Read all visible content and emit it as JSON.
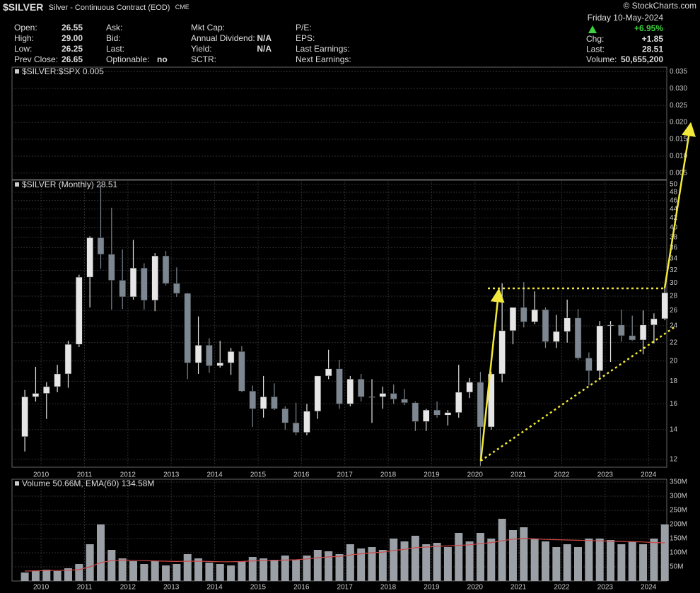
{
  "header": {
    "title": "$SILVER",
    "subtitle": "Silver - Continuous Contract (EOD)",
    "exchange": "CME",
    "watermark": "© StockCharts.com",
    "date": "Friday  10-May-2024",
    "change_pct": "+6.95%",
    "columns": [
      [
        {
          "label": "Open:",
          "value": "26.55"
        },
        {
          "label": "High:",
          "value": "29.00"
        },
        {
          "label": "Low:",
          "value": "26.25"
        },
        {
          "label": "Prev Close:",
          "value": "26.65"
        }
      ],
      [
        {
          "label": "Ask:"
        },
        {
          "label": "Bid:"
        },
        {
          "label": "Last:"
        },
        {
          "label": "Optionable:",
          "value": "no"
        }
      ],
      [
        {
          "label": "Mkt Cap:"
        },
        {
          "label": "Annual Dividend:",
          "value": "N/A"
        },
        {
          "label": "Yield:",
          "value": "N/A"
        },
        {
          "label": "SCTR:"
        }
      ],
      [
        {
          "label": "P/E:"
        },
        {
          "label": "EPS:"
        },
        {
          "label": "Last Earnings:"
        },
        {
          "label": "Next Earnings:"
        }
      ]
    ],
    "quote": [
      {
        "label": "Chg:",
        "value": "+1.85"
      },
      {
        "label": "Last:",
        "value": "28.51"
      },
      {
        "label": "Volume:",
        "value": "50,655,200"
      }
    ]
  },
  "chart_data": [
    {
      "type": "line",
      "title": "$SILVER:$SPX 0.005",
      "ylim": [
        0.0031,
        0.0363
      ],
      "yticks": [
        0.005,
        {
          "value": 0.01,
          "label": "0.010"
        },
        0.015,
        {
          "value": 0.02,
          "label": "0.020"
        },
        0.025,
        {
          "value": 0.03,
          "label": "0.030"
        },
        0.035
      ],
      "grid": true
    },
    {
      "type": "candlestick",
      "title": "$SILVER (Monthly) 28.51",
      "log_scale": true,
      "grid": true,
      "up_color": "#e6e6e6",
      "down_color": "#7d8791",
      "xlim": [
        2009.33,
        2024.42
      ],
      "xticks": [
        2010,
        2011,
        2012,
        2013,
        2014,
        2015,
        2016,
        2017,
        2018,
        2019,
        2020,
        2021,
        2022,
        2023,
        2024
      ],
      "ylim": [
        11.52,
        51.1
      ],
      "yticks": [
        12,
        14,
        16,
        18,
        20,
        22,
        24,
        26,
        28,
        30,
        32,
        34,
        36,
        38,
        40,
        42,
        44,
        46,
        48,
        50
      ],
      "x": [
        2009.625,
        2009.875,
        2010.125,
        2010.375,
        2010.625,
        2010.875,
        2011.125,
        2011.375,
        2011.625,
        2011.875,
        2012.125,
        2012.375,
        2012.625,
        2012.875,
        2013.125,
        2013.375,
        2013.625,
        2013.875,
        2014.125,
        2014.375,
        2014.625,
        2014.875,
        2015.125,
        2015.375,
        2015.625,
        2015.875,
        2016.125,
        2016.375,
        2016.625,
        2016.875,
        2017.125,
        2017.375,
        2017.625,
        2017.875,
        2018.125,
        2018.375,
        2018.625,
        2018.875,
        2019.125,
        2019.375,
        2019.625,
        2019.875,
        2020.125,
        2020.375,
        2020.625,
        2020.875,
        2021.125,
        2021.375,
        2021.625,
        2021.875,
        2022.125,
        2022.375,
        2022.625,
        2022.875,
        2023.125,
        2023.375,
        2023.625,
        2023.875,
        2024.125,
        2024.375
      ],
      "open": [
        13.5,
        16.6,
        16.9,
        17.5,
        18.7,
        21.8,
        30.9,
        37.9,
        34.8,
        30.4,
        27.9,
        32.4,
        27.4,
        34.5,
        29.9,
        28.4,
        19.8,
        21.7,
        19.5,
        19.8,
        21.0,
        17.1,
        15.6,
        16.6,
        15.6,
        14.5,
        13.8,
        15.4,
        18.5,
        19.2,
        16.0,
        18.2,
        16.6,
        16.6,
        16.9,
        16.4,
        16.1,
        14.6,
        15.5,
        15.1,
        15.3,
        17.0,
        17.9,
        14.2,
        18.7,
        23.4,
        26.4,
        24.5,
        26.1,
        22.1,
        23.3,
        25.0,
        20.3,
        19.0,
        24.0,
        24.1,
        22.8,
        22.3,
        24.1,
        24.9
      ],
      "high": [
        17.2,
        19.4,
        17.9,
        19.6,
        22.2,
        31.3,
        38.2,
        49.8,
        44.3,
        35.7,
        37.5,
        33.2,
        35.0,
        35.4,
        32.5,
        28.5,
        25.2,
        22.5,
        22.2,
        21.4,
        21.6,
        17.6,
        18.5,
        17.8,
        15.8,
        16.1,
        16.0,
        18.5,
        21.2,
        20.1,
        18.5,
        18.7,
        18.2,
        17.5,
        17.7,
        17.3,
        16.2,
        15.6,
        16.2,
        15.5,
        19.6,
        18.3,
        18.9,
        18.9,
        29.9,
        26.2,
        30.1,
        28.7,
        26.4,
        25.4,
        27.5,
        26.2,
        20.9,
        24.6,
        24.6,
        26.1,
        25.3,
        26.0,
        25.6,
        29.8
      ],
      "low": [
        12.5,
        16.2,
        14.8,
        17.0,
        17.4,
        21.5,
        26.4,
        32.3,
        26.1,
        26.2,
        27.5,
        26.1,
        25.9,
        29.6,
        27.9,
        18.2,
        18.7,
        18.8,
        19.3,
        18.6,
        17.0,
        14.2,
        14.9,
        15.5,
        14.0,
        13.6,
        13.6,
        14.8,
        18.2,
        15.6,
        15.8,
        16.2,
        14.5,
        15.6,
        16.0,
        15.9,
        13.9,
        13.9,
        14.9,
        14.3,
        14.9,
        16.5,
        11.6,
        14.0,
        17.9,
        21.8,
        23.8,
        24.2,
        21.4,
        21.4,
        22.0,
        20.1,
        17.6,
        18.1,
        19.9,
        22.1,
        22.2,
        20.7,
        21.9,
        24.7
      ],
      "close": [
        16.6,
        16.9,
        17.5,
        18.7,
        21.8,
        30.9,
        37.9,
        34.8,
        30.4,
        27.9,
        32.4,
        27.4,
        34.5,
        29.9,
        28.4,
        19.8,
        21.7,
        19.5,
        19.8,
        21.0,
        17.1,
        15.6,
        16.6,
        15.6,
        14.5,
        13.8,
        15.4,
        18.5,
        19.2,
        16.0,
        18.2,
        16.6,
        16.6,
        16.9,
        16.4,
        16.1,
        14.6,
        15.5,
        15.1,
        15.3,
        17.0,
        17.9,
        14.2,
        18.7,
        23.4,
        26.4,
        24.5,
        26.1,
        22.1,
        23.3,
        25.0,
        20.3,
        19.0,
        24.0,
        24.1,
        22.8,
        22.3,
        24.1,
        24.9,
        28.5
      ]
    },
    {
      "type": "bar",
      "title": "Volume 50.66M, EMA(60) 134.58M",
      "grid": true,
      "color": "#9aa0a6",
      "ema_color": "#d04848",
      "xlim": [
        2009.33,
        2024.42
      ],
      "xticks": [
        2010,
        2011,
        2012,
        2013,
        2014,
        2015,
        2016,
        2017,
        2018,
        2019,
        2020,
        2021,
        2022,
        2023,
        2024
      ],
      "ylim": [
        0,
        360
      ],
      "yticks": [
        {
          "value": 50,
          "label": "50M"
        },
        {
          "value": 100,
          "label": "100M"
        },
        {
          "value": 150,
          "label": "150M"
        },
        {
          "value": 200,
          "label": "200M"
        },
        {
          "value": 250,
          "label": "250M"
        },
        {
          "value": 300,
          "label": "300M"
        },
        {
          "value": 350,
          "label": "350M"
        }
      ],
      "x": [
        2009.625,
        2009.875,
        2010.125,
        2010.375,
        2010.625,
        2010.875,
        2011.125,
        2011.375,
        2011.625,
        2011.875,
        2012.125,
        2012.375,
        2012.625,
        2012.875,
        2013.125,
        2013.375,
        2013.625,
        2013.875,
        2014.125,
        2014.375,
        2014.625,
        2014.875,
        2015.125,
        2015.375,
        2015.625,
        2015.875,
        2016.125,
        2016.375,
        2016.625,
        2016.875,
        2017.125,
        2017.375,
        2017.625,
        2017.875,
        2018.125,
        2018.375,
        2018.625,
        2018.875,
        2019.125,
        2019.375,
        2019.625,
        2019.875,
        2020.125,
        2020.375,
        2020.625,
        2020.875,
        2021.125,
        2021.375,
        2021.625,
        2021.875,
        2022.125,
        2022.375,
        2022.625,
        2022.875,
        2023.125,
        2023.375,
        2023.625,
        2023.875,
        2024.125,
        2024.375
      ],
      "values": [
        30,
        35,
        40,
        35,
        45,
        60,
        130,
        200,
        110,
        80,
        70,
        60,
        70,
        55,
        60,
        95,
        80,
        65,
        60,
        55,
        70,
        85,
        80,
        75,
        90,
        75,
        90,
        110,
        105,
        95,
        130,
        115,
        120,
        110,
        150,
        140,
        160,
        130,
        135,
        120,
        170,
        140,
        170,
        150,
        220,
        180,
        190,
        150,
        140,
        120,
        130,
        120,
        150,
        150,
        145,
        130,
        140,
        130,
        150,
        200
      ],
      "ema_values": [
        35,
        36,
        37,
        37,
        38,
        40,
        50,
        65,
        72,
        74,
        73,
        72,
        71,
        70,
        69,
        70,
        70,
        69,
        68,
        68,
        69,
        71,
        72,
        73,
        74,
        75,
        78,
        82,
        85,
        87,
        92,
        96,
        100,
        102,
        108,
        112,
        118,
        120,
        123,
        124,
        126,
        128,
        132,
        136,
        142,
        148,
        150,
        149,
        147,
        146,
        145,
        144,
        143,
        142,
        141,
        140,
        139,
        138,
        136,
        135
      ]
    }
  ]
}
